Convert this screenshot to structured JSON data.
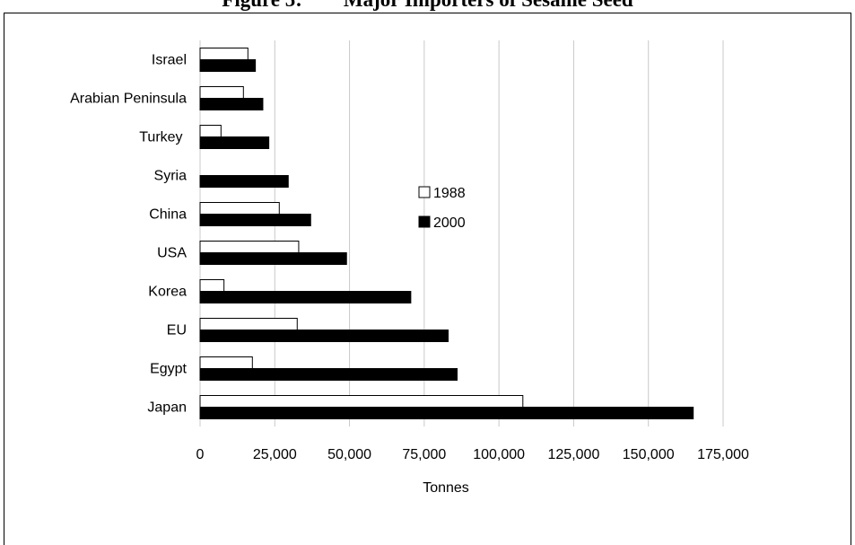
{
  "figure_title": "Figure 5:        Major Importers of Sesame Seed",
  "chart_data": {
    "type": "bar",
    "orientation": "horizontal",
    "categories": [
      "Japan",
      "Egypt",
      "EU",
      "Korea",
      "USA",
      "China",
      "Syria",
      "Turkey",
      "Arabian Peninsula",
      "Israel"
    ],
    "category_labels": [
      "Japan",
      "Egypt",
      "EU",
      "Korea",
      "USA",
      "China",
      "Syria",
      "Turkey ",
      "Arabian Peninsula",
      "Israel"
    ],
    "series": [
      {
        "name": "1988",
        "color": "#ffffff",
        "values": [
          108000,
          17500,
          32500,
          8000,
          33000,
          26500,
          0,
          7000,
          14500,
          16000
        ]
      },
      {
        "name": "2000",
        "color": "#000000",
        "values": [
          165000,
          86000,
          83000,
          70500,
          49000,
          37000,
          29500,
          23000,
          21000,
          18500
        ]
      }
    ],
    "xlabel": "Tonnes",
    "xlim": [
      0,
      175000
    ],
    "xticks": [
      0,
      25000,
      50000,
      75000,
      100000,
      125000,
      150000,
      175000
    ],
    "xtick_labels": [
      "0",
      "25,000",
      "50,000",
      "75,000",
      "100,000",
      "125,000",
      "150,000",
      "175,000"
    ],
    "grid": "vertical",
    "legend_position": "center"
  }
}
